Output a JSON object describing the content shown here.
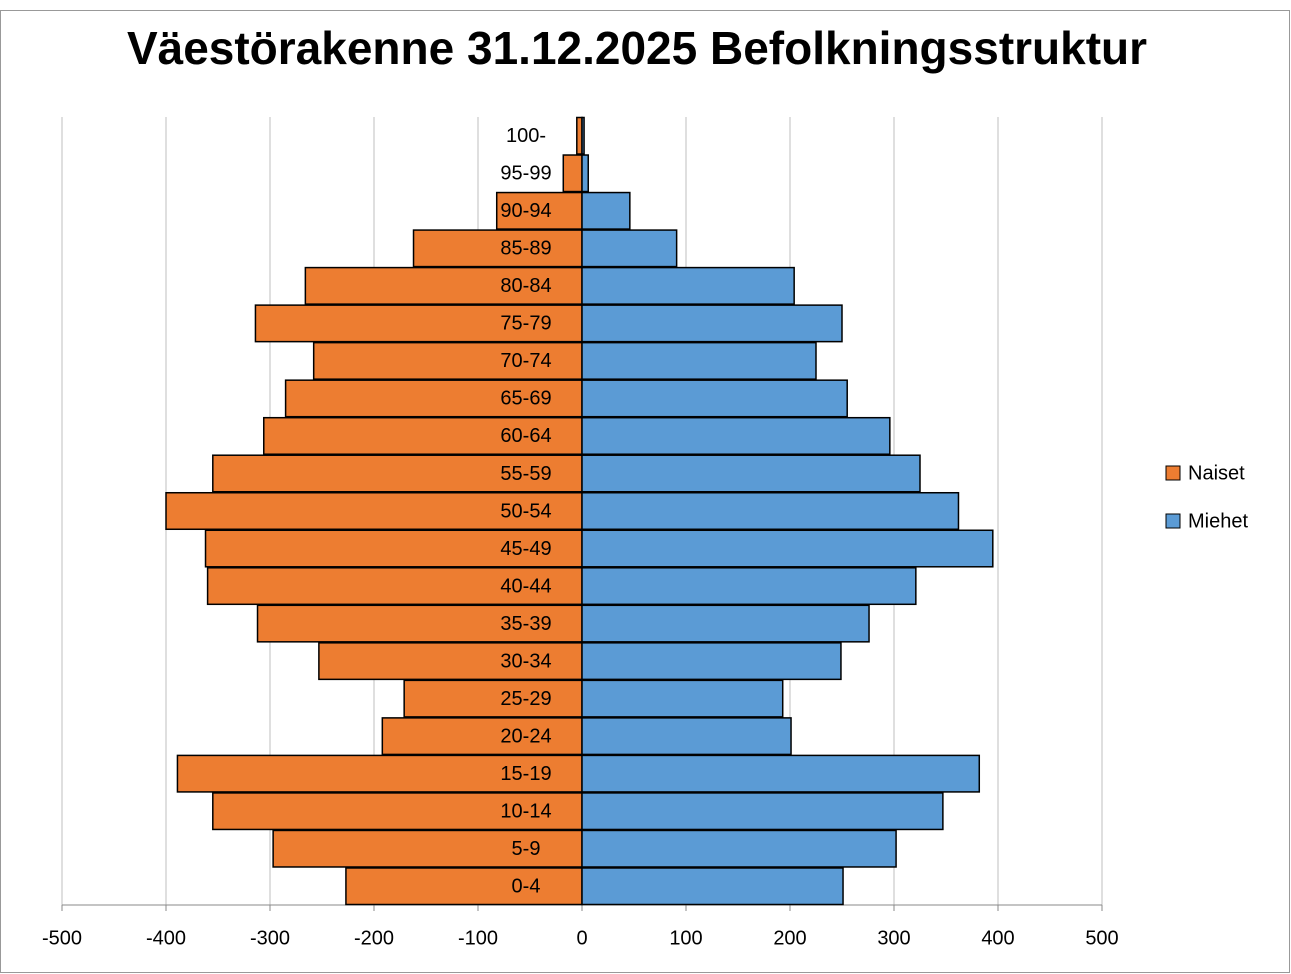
{
  "chart_data": {
    "type": "bar",
    "orientation": "horizontal",
    "title": "Väestörakenne 31.12.2025 Befolkningsstruktur",
    "categories": [
      "0-4",
      "5-9",
      "10-14",
      "15-19",
      "20-24",
      "25-29",
      "30-34",
      "35-39",
      "40-44",
      "45-49",
      "50-54",
      "55-59",
      "60-64",
      "65-69",
      "70-74",
      "75-79",
      "80-84",
      "85-89",
      "90-94",
      "95-99",
      "100-"
    ],
    "series": [
      {
        "name": "Naiset",
        "color": "#ed7d31",
        "values": [
          -227,
          -297,
          -355,
          -389,
          -192,
          -171,
          -253,
          -312,
          -360,
          -362,
          -400,
          -355,
          -306,
          -285,
          -258,
          -314,
          -266,
          -162,
          -82,
          -18,
          -5
        ]
      },
      {
        "name": "Miehet",
        "color": "#5b9bd5",
        "values": [
          251,
          302,
          347,
          382,
          201,
          193,
          249,
          276,
          321,
          395,
          362,
          325,
          296,
          255,
          225,
          250,
          204,
          91,
          46,
          6,
          2
        ]
      }
    ],
    "xlim": [
      -500,
      500
    ],
    "xticks": [
      -500,
      -400,
      -300,
      -200,
      -100,
      0,
      100,
      200,
      300,
      400,
      500
    ],
    "grid": true,
    "legend": "right"
  }
}
